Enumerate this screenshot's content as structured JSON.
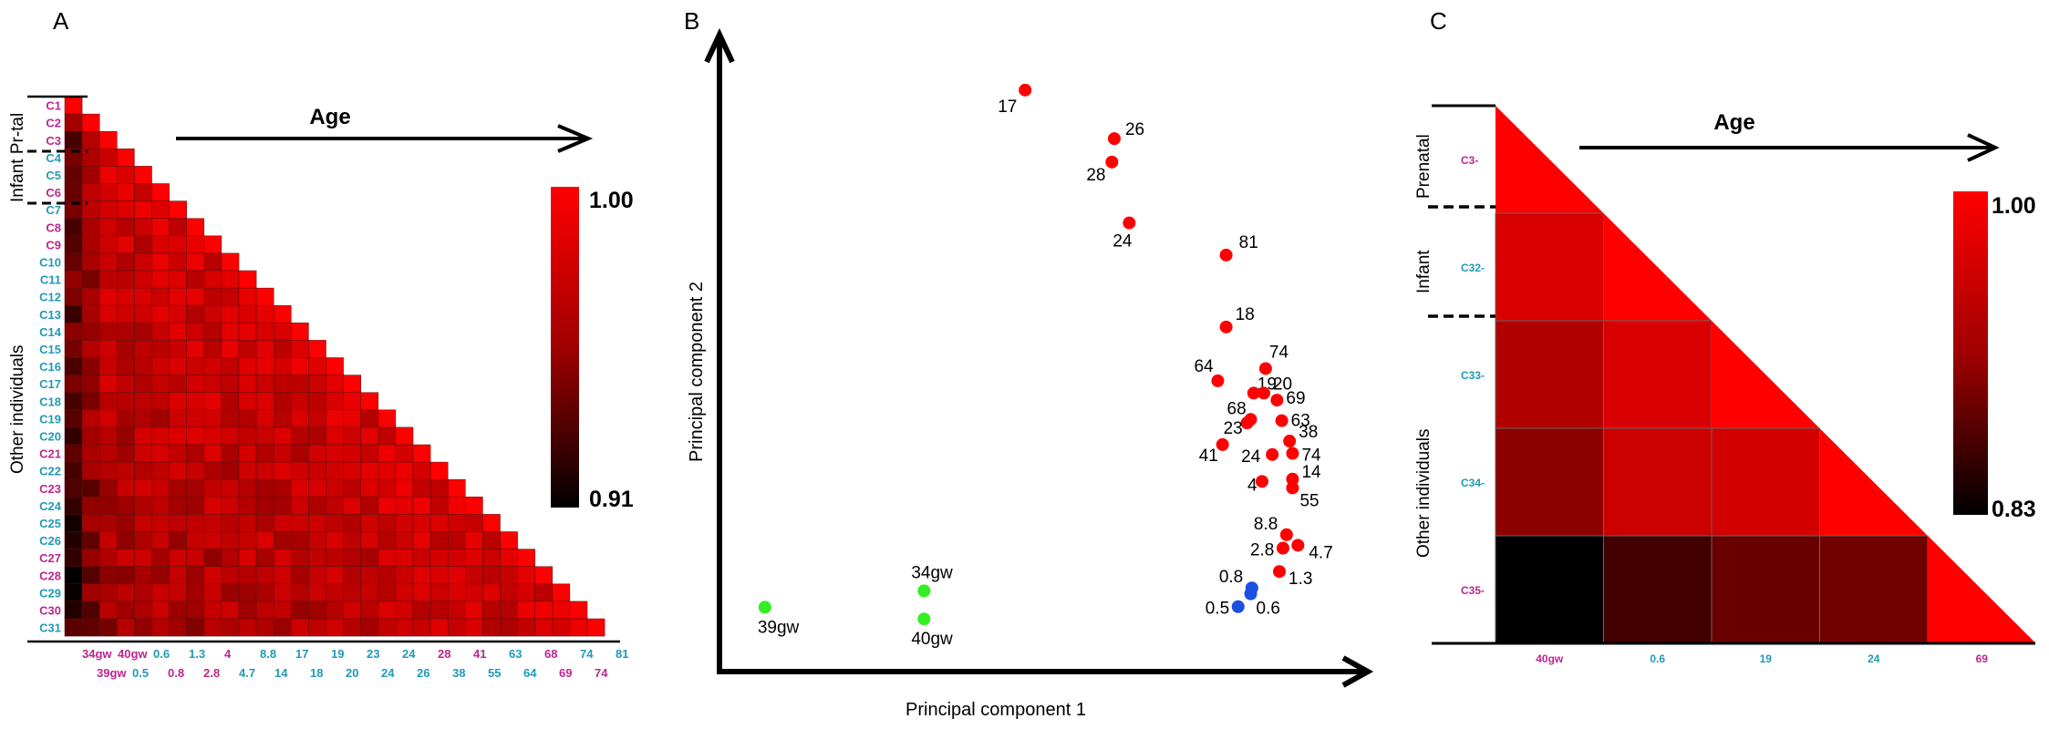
{
  "colors": {
    "magenta": "#c0248f",
    "cyan": "#1f9ab8",
    "red_dot": "#ff0000",
    "green_dot": "#33ee22",
    "blue_dot": "#1a4fe0",
    "grid_line": "#555555"
  },
  "chart_data": [
    {
      "panel": "A",
      "type": "heatmap",
      "arrow_label": "Age",
      "colorbar": {
        "max": "1.00",
        "min": "0.91",
        "vmin": 0.91,
        "vmax": 1.0
      },
      "side_labels": [
        "Infant Pr-tal",
        "Other individuals"
      ],
      "row_labels": [
        {
          "t": "C1",
          "c": "m"
        },
        {
          "t": "C2",
          "c": "m"
        },
        {
          "t": "C3",
          "c": "m"
        },
        {
          "t": "C4",
          "c": "c"
        },
        {
          "t": "C5",
          "c": "c"
        },
        {
          "t": "C6",
          "c": "m"
        },
        {
          "t": "C7",
          "c": "c"
        },
        {
          "t": "C8",
          "c": "m"
        },
        {
          "t": "C9",
          "c": "m"
        },
        {
          "t": "C10",
          "c": "c"
        },
        {
          "t": "C11",
          "c": "c"
        },
        {
          "t": "C12",
          "c": "c"
        },
        {
          "t": "C13",
          "c": "c"
        },
        {
          "t": "C14",
          "c": "c"
        },
        {
          "t": "C15",
          "c": "c"
        },
        {
          "t": "C16",
          "c": "c"
        },
        {
          "t": "C17",
          "c": "c"
        },
        {
          "t": "C18",
          "c": "c"
        },
        {
          "t": "C19",
          "c": "c"
        },
        {
          "t": "C20",
          "c": "c"
        },
        {
          "t": "C21",
          "c": "m"
        },
        {
          "t": "C22",
          "c": "c"
        },
        {
          "t": "C23",
          "c": "m"
        },
        {
          "t": "C24",
          "c": "c"
        },
        {
          "t": "C25",
          "c": "c"
        },
        {
          "t": "C26",
          "c": "c"
        },
        {
          "t": "C27",
          "c": "m"
        },
        {
          "t": "C28",
          "c": "m"
        },
        {
          "t": "C29",
          "c": "c"
        },
        {
          "t": "C30",
          "c": "m"
        },
        {
          "t": "C31",
          "c": "c"
        }
      ],
      "col_labels_top": [
        {
          "t": "34gw",
          "c": "m"
        },
        {
          "t": "40gw",
          "c": "m"
        },
        {
          "t": "0.6",
          "c": "c"
        },
        {
          "t": "1.3",
          "c": "c"
        },
        {
          "t": "4",
          "c": "m"
        },
        {
          "t": "8.8",
          "c": "c"
        },
        {
          "t": "17",
          "c": "c"
        },
        {
          "t": "19",
          "c": "c"
        },
        {
          "t": "23",
          "c": "c"
        },
        {
          "t": "24",
          "c": "c"
        },
        {
          "t": "28",
          "c": "m"
        },
        {
          "t": "41",
          "c": "m"
        },
        {
          "t": "63",
          "c": "c"
        },
        {
          "t": "68",
          "c": "m"
        },
        {
          "t": "74",
          "c": "c"
        },
        {
          "t": "81",
          "c": "c"
        }
      ],
      "col_labels_bottom": [
        {
          "t": "39gw",
          "c": "m"
        },
        {
          "t": "0.5",
          "c": "c"
        },
        {
          "t": "0.8",
          "c": "m"
        },
        {
          "t": "2.8",
          "c": "m"
        },
        {
          "t": "4.7",
          "c": "c"
        },
        {
          "t": "14",
          "c": "c"
        },
        {
          "t": "18",
          "c": "c"
        },
        {
          "t": "20",
          "c": "c"
        },
        {
          "t": "24",
          "c": "c"
        },
        {
          "t": "26",
          "c": "c"
        },
        {
          "t": "38",
          "c": "c"
        },
        {
          "t": "55",
          "c": "c"
        },
        {
          "t": "64",
          "c": "c"
        },
        {
          "t": "69",
          "c": "m"
        },
        {
          "t": "74",
          "c": "m"
        }
      ]
    },
    {
      "panel": "B",
      "type": "scatter",
      "xlabel": "Principal component 1",
      "ylabel": "Principal component 2",
      "xlim": [
        0,
        100
      ],
      "ylim": [
        0,
        100
      ],
      "points": [
        {
          "x": 51.1,
          "y": 99.4,
          "label": "17",
          "group": "red"
        },
        {
          "x": 66.0,
          "y": 91.1,
          "label": "26",
          "group": "red"
        },
        {
          "x": 65.6,
          "y": 87.1,
          "label": "28",
          "group": "red"
        },
        {
          "x": 68.5,
          "y": 76.7,
          "label": "24",
          "group": "red"
        },
        {
          "x": 84.7,
          "y": 71.2,
          "label": "81",
          "group": "red"
        },
        {
          "x": 84.7,
          "y": 58.9,
          "label": "18",
          "group": "red"
        },
        {
          "x": 91.3,
          "y": 51.8,
          "label": "74",
          "group": "red"
        },
        {
          "x": 83.3,
          "y": 49.7,
          "label": "64",
          "group": "red"
        },
        {
          "x": 89.3,
          "y": 47.6,
          "label": "19",
          "group": "red"
        },
        {
          "x": 91.0,
          "y": 47.6,
          "label": "20",
          "group": "red"
        },
        {
          "x": 93.2,
          "y": 46.4,
          "label": "69",
          "group": "red"
        },
        {
          "x": 88.8,
          "y": 43.1,
          "label": "68",
          "group": "red"
        },
        {
          "x": 88.2,
          "y": 42.5,
          "label": "23",
          "group": "red"
        },
        {
          "x": 94.0,
          "y": 42.9,
          "label": "63",
          "group": "red"
        },
        {
          "x": 95.3,
          "y": 39.4,
          "label": "38",
          "group": "red"
        },
        {
          "x": 84.1,
          "y": 38.8,
          "label": "41",
          "group": "red"
        },
        {
          "x": 95.8,
          "y": 37.3,
          "label": "74",
          "group": "red"
        },
        {
          "x": 92.4,
          "y": 37.1,
          "label": "24",
          "group": "red"
        },
        {
          "x": 95.8,
          "y": 32.9,
          "label": "14",
          "group": "red"
        },
        {
          "x": 90.7,
          "y": 32.5,
          "label": "4",
          "group": "red"
        },
        {
          "x": 95.8,
          "y": 31.4,
          "label": "55",
          "group": "red"
        },
        {
          "x": 94.8,
          "y": 23.4,
          "label": "8.8",
          "group": "red"
        },
        {
          "x": 96.7,
          "y": 21.6,
          "label": "4.7",
          "group": "red"
        },
        {
          "x": 94.2,
          "y": 21.1,
          "label": "2.8",
          "group": "red"
        },
        {
          "x": 93.6,
          "y": 17.1,
          "label": "1.3",
          "group": "red"
        },
        {
          "x": 89.0,
          "y": 14.3,
          "label": "0.8",
          "group": "blue"
        },
        {
          "x": 88.8,
          "y": 13.3,
          "label": "0.6",
          "group": "blue"
        },
        {
          "x": 86.7,
          "y": 11.1,
          "label": "0.5",
          "group": "blue"
        },
        {
          "x": 34.2,
          "y": 13.8,
          "label": "34gw",
          "group": "green"
        },
        {
          "x": 34.2,
          "y": 9.0,
          "label": "40gw",
          "group": "green"
        },
        {
          "x": 7.6,
          "y": 11.0,
          "label": "39gw",
          "group": "green"
        }
      ]
    },
    {
      "panel": "C",
      "type": "heatmap",
      "arrow_label": "Age",
      "colorbar": {
        "max": "1.00",
        "min": "0.83",
        "vmin": 0.83,
        "vmax": 1.0
      },
      "side_labels": [
        "Prenatal",
        "Infant",
        "Other individuals"
      ],
      "row_labels": [
        {
          "t": "C3-",
          "c": "m"
        },
        {
          "t": "C32-",
          "c": "c"
        },
        {
          "t": "C33-",
          "c": "c"
        },
        {
          "t": "C34-",
          "c": "c"
        },
        {
          "t": "C35-",
          "c": "m"
        }
      ],
      "col_labels": [
        {
          "t": "40gw",
          "c": "m"
        },
        {
          "t": "0.6",
          "c": "c"
        },
        {
          "t": "19",
          "c": "c"
        },
        {
          "t": "24",
          "c": "c"
        },
        {
          "t": "69",
          "c": "m"
        }
      ],
      "matrix": [
        [
          1.0
        ],
        [
          0.965,
          1.0
        ],
        [
          0.93,
          0.965,
          1.0
        ],
        [
          0.905,
          0.955,
          0.96,
          1.0
        ],
        [
          0.83,
          0.865,
          0.885,
          0.89,
          1.0
        ]
      ]
    }
  ]
}
